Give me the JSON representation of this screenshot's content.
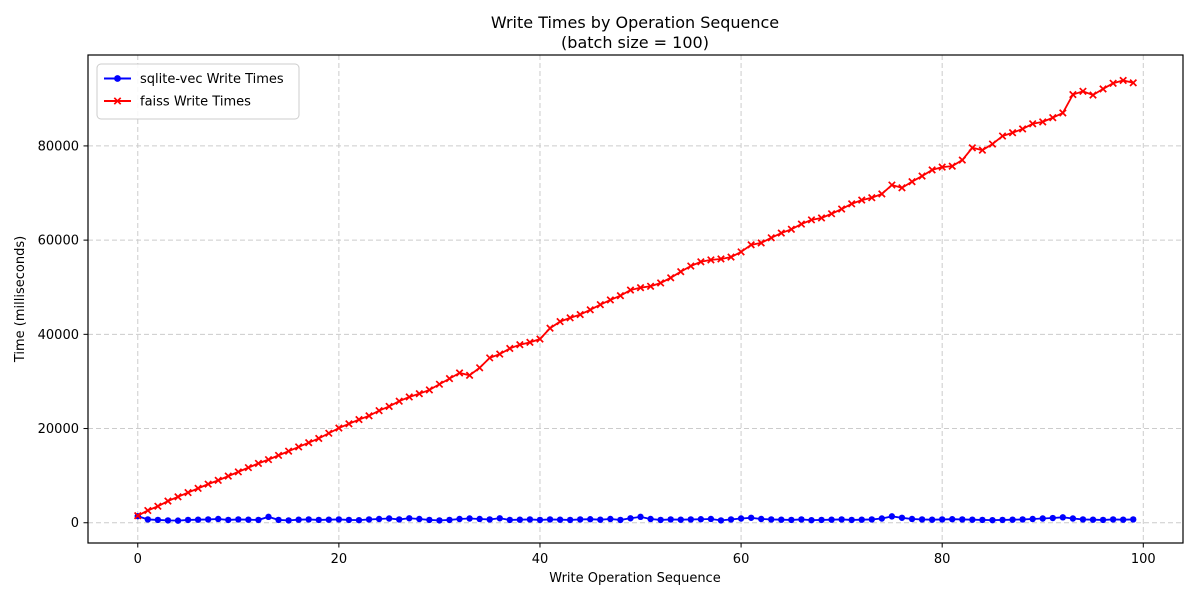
{
  "chart_data": {
    "type": "line",
    "title": "Write Times by Operation Sequence",
    "subtitle": "(batch size = 100)",
    "xlabel": "Write Operation Sequence",
    "ylabel": "Time (milliseconds)",
    "x_ticks": [
      0,
      20,
      40,
      60,
      80,
      100
    ],
    "y_ticks": [
      0,
      20000,
      40000,
      60000,
      80000
    ],
    "xlim": [
      -4.95,
      103.95
    ],
    "ylim": [
      -4300,
      99300
    ],
    "grid": true,
    "legend_position": "upper left",
    "x": [
      0,
      1,
      2,
      3,
      4,
      5,
      6,
      7,
      8,
      9,
      10,
      11,
      12,
      13,
      14,
      15,
      16,
      17,
      18,
      19,
      20,
      21,
      22,
      23,
      24,
      25,
      26,
      27,
      28,
      29,
      30,
      31,
      32,
      33,
      34,
      35,
      36,
      37,
      38,
      39,
      40,
      41,
      42,
      43,
      44,
      45,
      46,
      47,
      48,
      49,
      50,
      51,
      52,
      53,
      54,
      55,
      56,
      57,
      58,
      59,
      60,
      61,
      62,
      63,
      64,
      65,
      66,
      67,
      68,
      69,
      70,
      71,
      72,
      73,
      74,
      75,
      76,
      77,
      78,
      79,
      80,
      81,
      82,
      83,
      84,
      85,
      86,
      87,
      88,
      89,
      90,
      91,
      92,
      93,
      94,
      95,
      96,
      97,
      98,
      99
    ],
    "series": [
      {
        "name": "sqlite-vec Write Times",
        "color": "#0000ff",
        "marker": "circle",
        "values": [
          1400,
          700,
          600,
          500,
          450,
          600,
          650,
          700,
          800,
          600,
          700,
          650,
          600,
          1250,
          600,
          500,
          650,
          700,
          600,
          650,
          700,
          600,
          550,
          700,
          800,
          900,
          700,
          950,
          800,
          600,
          500,
          600,
          800,
          900,
          800,
          700,
          950,
          600,
          650,
          700,
          600,
          700,
          650,
          600,
          700,
          750,
          650,
          800,
          600,
          950,
          1250,
          800,
          600,
          700,
          650,
          700,
          750,
          800,
          500,
          700,
          900,
          1050,
          800,
          700,
          650,
          600,
          700,
          550,
          600,
          650,
          700,
          600,
          650,
          700,
          900,
          1350,
          1050,
          800,
          700,
          650,
          700,
          750,
          700,
          650,
          600,
          550,
          600,
          650,
          700,
          800,
          900,
          1000,
          1150,
          900,
          700,
          650,
          600,
          700,
          650,
          700
        ]
      },
      {
        "name": "faiss Write Times",
        "color": "#ff0000",
        "marker": "x",
        "values": [
          1500,
          2600,
          3500,
          4600,
          5500,
          6400,
          7300,
          8200,
          9000,
          9900,
          10800,
          11700,
          12600,
          13400,
          14300,
          15200,
          16100,
          17000,
          17900,
          19000,
          20100,
          21000,
          21900,
          22700,
          23800,
          24700,
          25800,
          26700,
          27400,
          28200,
          29400,
          30600,
          31800,
          31300,
          32900,
          35000,
          35800,
          37000,
          37800,
          38300,
          39000,
          41300,
          42700,
          43500,
          44200,
          45200,
          46300,
          47300,
          48200,
          49400,
          49900,
          50200,
          50900,
          52000,
          53300,
          54500,
          55400,
          55800,
          56000,
          56400,
          57500,
          59000,
          59400,
          60500,
          61500,
          62300,
          63400,
          64300,
          64700,
          65600,
          66600,
          67700,
          68500,
          69000,
          69800,
          71700,
          71100,
          72400,
          73600,
          74900,
          75500,
          75700,
          77000,
          79600,
          79100,
          80400,
          82100,
          82800,
          83600,
          84700,
          85100,
          86000,
          87000,
          90900,
          91600,
          90800,
          92100,
          93300,
          93900,
          93400
        ]
      }
    ]
  }
}
